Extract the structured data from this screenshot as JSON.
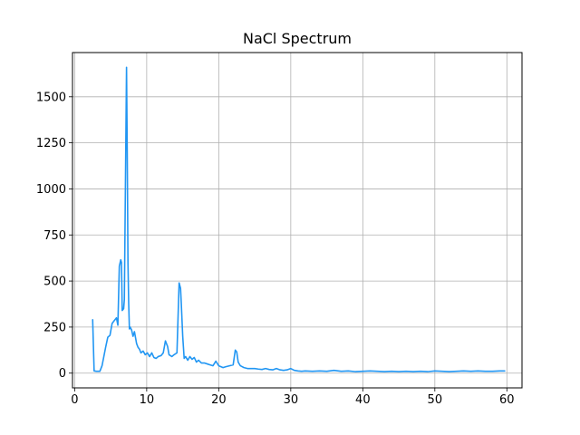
{
  "chart_data": {
    "type": "line",
    "title": "NaCl Spectrum",
    "xlabel": "",
    "ylabel": "",
    "xlim": [
      -0.3,
      62.1
    ],
    "ylim": [
      -80,
      1740
    ],
    "xticks": [
      0,
      10,
      20,
      30,
      40,
      50,
      60
    ],
    "yticks": [
      0,
      250,
      500,
      750,
      1000,
      1250,
      1500
    ],
    "grid": true,
    "line_color": "#2196f3",
    "series": [
      {
        "x": [
          2.5,
          2.7,
          3.0,
          3.5,
          3.8,
          4.0,
          4.3,
          4.6,
          4.9,
          5.2,
          5.5,
          5.8,
          6.0,
          6.2,
          6.4,
          6.5,
          6.6,
          6.8,
          6.9,
          7.0,
          7.2,
          7.3,
          7.4,
          7.5,
          7.6,
          7.7,
          7.9,
          8.1,
          8.3,
          8.6,
          8.8,
          9.0,
          9.2,
          9.5,
          9.8,
          10.1,
          10.4,
          10.7,
          11.0,
          11.3,
          11.6,
          12.0,
          12.3,
          12.6,
          12.9,
          13.1,
          13.3,
          13.5,
          13.8,
          14.2,
          14.5,
          14.7,
          14.8,
          15.0,
          15.2,
          15.4,
          15.7,
          16.0,
          16.3,
          16.6,
          16.9,
          17.2,
          17.6,
          18.0,
          18.4,
          18.8,
          19.2,
          19.6,
          20.0,
          20.3,
          20.6,
          21.0,
          21.5,
          22.0,
          22.3,
          22.5,
          22.7,
          23.0,
          23.5,
          24.0,
          24.5,
          25.0,
          25.5,
          26.0,
          26.5,
          27.0,
          27.5,
          28.0,
          28.5,
          29.0,
          29.5,
          30.0,
          30.5,
          31.0,
          31.5,
          32.0,
          33.0,
          34.0,
          35.0,
          36.0,
          37.0,
          38.0,
          39.0,
          40.0,
          41.0,
          42.0,
          43.0,
          44.0,
          45.0,
          46.0,
          47.0,
          48.0,
          49.0,
          50.0,
          51.0,
          52.0,
          53.0,
          54.0,
          55.0,
          56.0,
          57.0,
          58.0,
          59.0,
          59.7
        ],
        "y": [
          290,
          12,
          10,
          10,
          40,
          80,
          140,
          195,
          205,
          270,
          285,
          300,
          260,
          580,
          615,
          600,
          340,
          350,
          400,
          830,
          1660,
          1200,
          600,
          380,
          240,
          250,
          235,
          200,
          225,
          160,
          140,
          130,
          110,
          120,
          100,
          110,
          90,
          110,
          85,
          80,
          90,
          95,
          110,
          175,
          145,
          100,
          95,
          90,
          100,
          110,
          490,
          460,
          380,
          200,
          80,
          90,
          70,
          90,
          75,
          85,
          60,
          70,
          55,
          55,
          50,
          45,
          40,
          65,
          40,
          35,
          30,
          35,
          40,
          45,
          125,
          115,
          60,
          40,
          30,
          25,
          25,
          25,
          22,
          20,
          25,
          20,
          18,
          25,
          18,
          15,
          18,
          25,
          15,
          12,
          10,
          12,
          10,
          12,
          10,
          15,
          10,
          12,
          8,
          10,
          12,
          10,
          8,
          10,
          8,
          10,
          8,
          10,
          8,
          12,
          10,
          8,
          10,
          12,
          10,
          12,
          10,
          10,
          12,
          12
        ]
      }
    ]
  }
}
